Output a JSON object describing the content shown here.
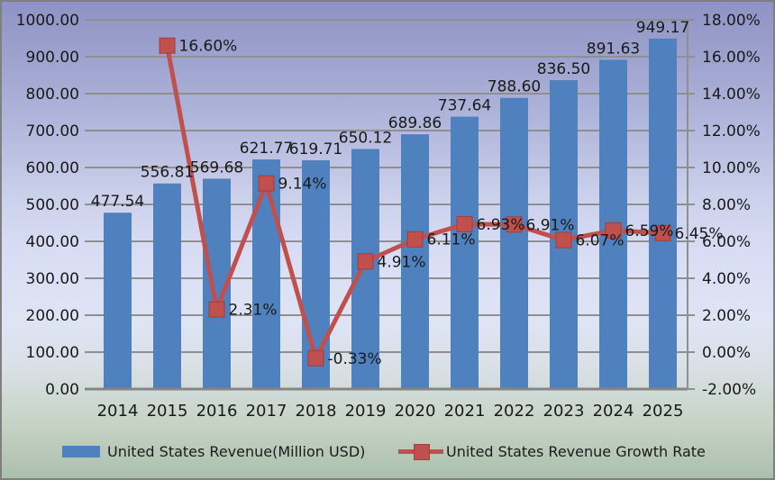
{
  "chart_data": {
    "type": "combo-bar-line",
    "categories": [
      "2014",
      "2015",
      "2016",
      "2017",
      "2018",
      "2019",
      "2020",
      "2021",
      "2022",
      "2023",
      "2024",
      "2025"
    ],
    "series": [
      {
        "name": "United States Revenue(Million USD)",
        "type": "bar",
        "axis": "left",
        "color": "#4E81BD",
        "values": [
          477.54,
          556.81,
          569.68,
          621.77,
          619.71,
          650.12,
          689.86,
          737.64,
          788.6,
          836.5,
          891.63,
          949.17
        ],
        "data_labels": [
          "477.54",
          "556.81",
          "569.68",
          "621.77",
          "619.71",
          "650.12",
          "689.86",
          "737.64",
          "788.60",
          "836.50",
          "891.63",
          "949.17"
        ]
      },
      {
        "name": "United States Revenue Growth Rate",
        "type": "line",
        "axis": "right",
        "color": "#C0504D",
        "marker_border": "#A23E3B",
        "values": [
          null,
          16.6,
          2.31,
          9.14,
          -0.33,
          4.91,
          6.11,
          6.93,
          6.91,
          6.07,
          6.59,
          6.45
        ],
        "data_labels": [
          null,
          "16.60%",
          "2.31%",
          "9.14%",
          "-0.33%",
          "4.91%",
          "6.11%",
          "6.93%",
          "6.91%",
          "6.07%",
          "6.59%",
          "6.45%"
        ]
      }
    ],
    "left_axis": {
      "min": 0,
      "max": 1000,
      "step": 100,
      "tick_labels": [
        "0.00",
        "100.00",
        "200.00",
        "300.00",
        "400.00",
        "500.00",
        "600.00",
        "700.00",
        "800.00",
        "900.00",
        "1000.00"
      ]
    },
    "right_axis": {
      "min": -2,
      "max": 18,
      "step": 2,
      "tick_labels": [
        "-2.00%",
        "0.00%",
        "2.00%",
        "4.00%",
        "6.00%",
        "8.00%",
        "10.00%",
        "12.00%",
        "14.00%",
        "16.00%",
        "18.00%"
      ]
    },
    "grid": true,
    "legend_position": "bottom"
  },
  "colors": {
    "gridline": "#8F8F8F",
    "axis_line": "#858585",
    "text": "#1A1A1A",
    "border": "#7F7F7F"
  }
}
